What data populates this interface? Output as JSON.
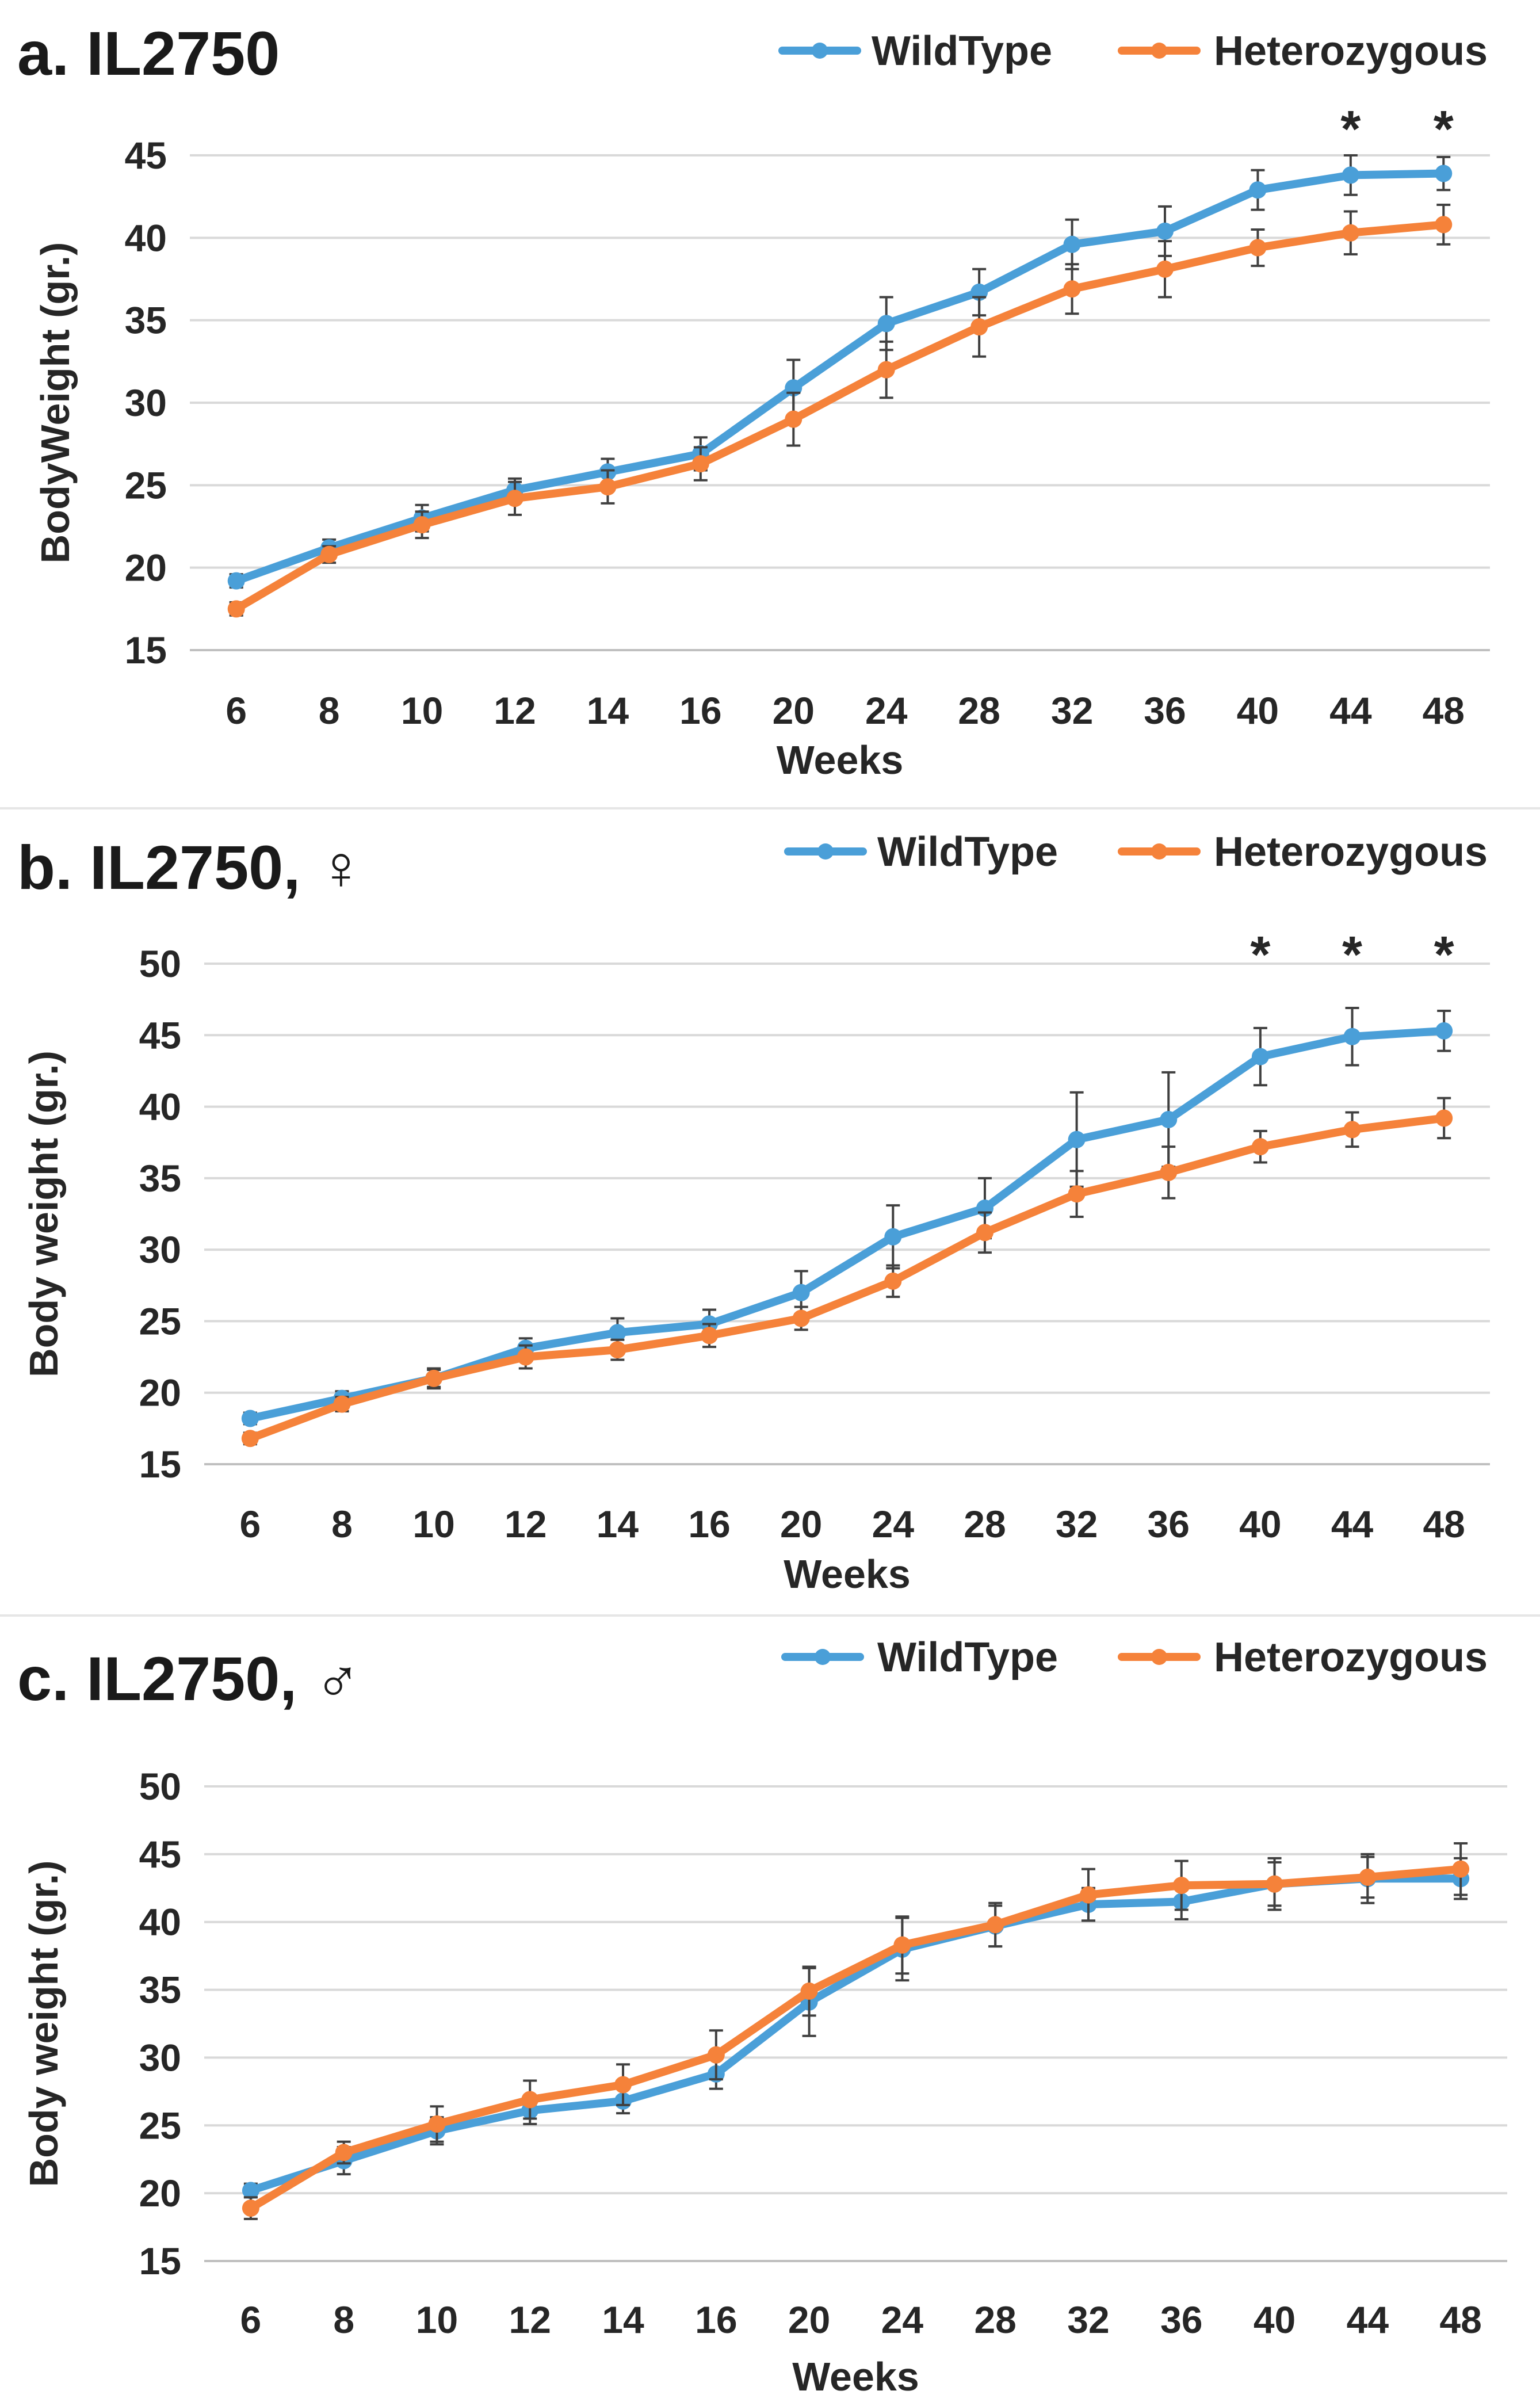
{
  "colors": {
    "wildtype": "#4a9fd8",
    "heterozygous": "#f5823a"
  },
  "chart_data": [
    {
      "type": "line",
      "title": "a. IL2750",
      "xlabel": "Weeks",
      "ylabel": "BodyWeight (gr.)",
      "categories": [
        "6",
        "8",
        "10",
        "12",
        "14",
        "16",
        "20",
        "24",
        "28",
        "32",
        "36",
        "40",
        "44",
        "48"
      ],
      "ylim": [
        15,
        45
      ],
      "yticks": [
        15,
        20,
        25,
        30,
        35,
        40,
        45
      ],
      "legend_position": "top-right",
      "grid": true,
      "series": [
        {
          "name": "WildType",
          "color": "wildtype",
          "values": [
            19.2,
            21.2,
            23.0,
            24.7,
            25.8,
            26.9,
            30.9,
            34.8,
            36.7,
            39.6,
            40.4,
            42.9,
            43.8,
            43.9
          ],
          "errors": [
            0.4,
            0.5,
            0.8,
            0.7,
            0.8,
            1.0,
            1.7,
            1.6,
            1.4,
            1.5,
            1.5,
            1.2,
            1.2,
            1.0
          ]
        },
        {
          "name": "Heterozygous",
          "color": "heterozygous",
          "values": [
            17.5,
            20.8,
            22.6,
            24.2,
            24.9,
            26.3,
            29.0,
            32.0,
            34.6,
            36.9,
            38.1,
            39.4,
            40.3,
            40.8
          ],
          "errors": [
            0.4,
            0.5,
            0.8,
            1.0,
            1.0,
            1.0,
            1.6,
            1.7,
            1.8,
            1.5,
            1.7,
            1.1,
            1.3,
            1.2
          ]
        }
      ],
      "significance": [
        {
          "category": "44",
          "label": "*"
        },
        {
          "category": "48",
          "label": "*"
        }
      ]
    },
    {
      "type": "line",
      "title": "b. IL2750, ♀",
      "xlabel": "Weeks",
      "ylabel": "Body weight (gr.)",
      "categories": [
        "6",
        "8",
        "10",
        "12",
        "14",
        "16",
        "20",
        "24",
        "28",
        "32",
        "36",
        "40",
        "44",
        "48"
      ],
      "ylim": [
        15,
        50
      ],
      "yticks": [
        15,
        20,
        25,
        30,
        35,
        40,
        45,
        50
      ],
      "legend_position": "top-right",
      "grid": true,
      "series": [
        {
          "name": "WildType",
          "color": "wildtype",
          "values": [
            18.2,
            19.6,
            21.0,
            23.1,
            24.2,
            24.8,
            27.0,
            30.9,
            32.9,
            37.7,
            39.1,
            43.5,
            44.9,
            45.3
          ],
          "errors": [
            0.4,
            0.5,
            0.7,
            0.7,
            1.0,
            1.0,
            1.5,
            2.2,
            2.1,
            3.3,
            3.3,
            2.0,
            2.0,
            1.4
          ]
        },
        {
          "name": "Heterozygous",
          "color": "heterozygous",
          "values": [
            16.8,
            19.2,
            21.0,
            22.5,
            23.0,
            24.0,
            25.2,
            27.8,
            31.2,
            33.9,
            35.4,
            37.2,
            38.4,
            39.2
          ],
          "errors": [
            0.4,
            0.5,
            0.6,
            0.8,
            0.7,
            0.8,
            0.8,
            1.1,
            1.4,
            1.6,
            1.8,
            1.1,
            1.2,
            1.4
          ]
        }
      ],
      "significance": [
        {
          "category": "40",
          "label": "*"
        },
        {
          "category": "44",
          "label": "*"
        },
        {
          "category": "48",
          "label": "*"
        }
      ]
    },
    {
      "type": "line",
      "title": "c. IL2750, ♂",
      "xlabel": "Weeks",
      "ylabel": "Body weight (gr.)",
      "categories": [
        "6",
        "8",
        "10",
        "12",
        "14",
        "16",
        "20",
        "24",
        "28",
        "32",
        "36",
        "40",
        "44",
        "48"
      ],
      "ylim": [
        15,
        50
      ],
      "yticks": [
        15,
        20,
        25,
        30,
        35,
        40,
        45,
        50
      ],
      "legend_position": "top-right",
      "grid": true,
      "series": [
        {
          "name": "WildType",
          "color": "wildtype",
          "values": [
            20.2,
            22.4,
            24.6,
            26.1,
            26.8,
            28.8,
            34.1,
            38.0,
            39.7,
            41.3,
            41.5,
            42.8,
            43.2,
            43.2
          ],
          "errors": [
            0.5,
            1.0,
            1.0,
            1.0,
            0.9,
            1.1,
            2.5,
            2.3,
            1.5,
            1.2,
            1.3,
            1.9,
            1.8,
            1.5
          ]
        },
        {
          "name": "Heterozygous",
          "color": "heterozygous",
          "values": [
            18.9,
            23.0,
            25.1,
            26.9,
            28.0,
            30.2,
            34.9,
            38.3,
            39.8,
            42.0,
            42.7,
            42.8,
            43.3,
            43.9
          ],
          "errors": [
            0.8,
            0.8,
            1.3,
            1.4,
            1.5,
            1.8,
            1.8,
            2.1,
            1.6,
            1.9,
            1.8,
            1.6,
            1.5,
            1.9
          ]
        }
      ],
      "significance": []
    }
  ]
}
